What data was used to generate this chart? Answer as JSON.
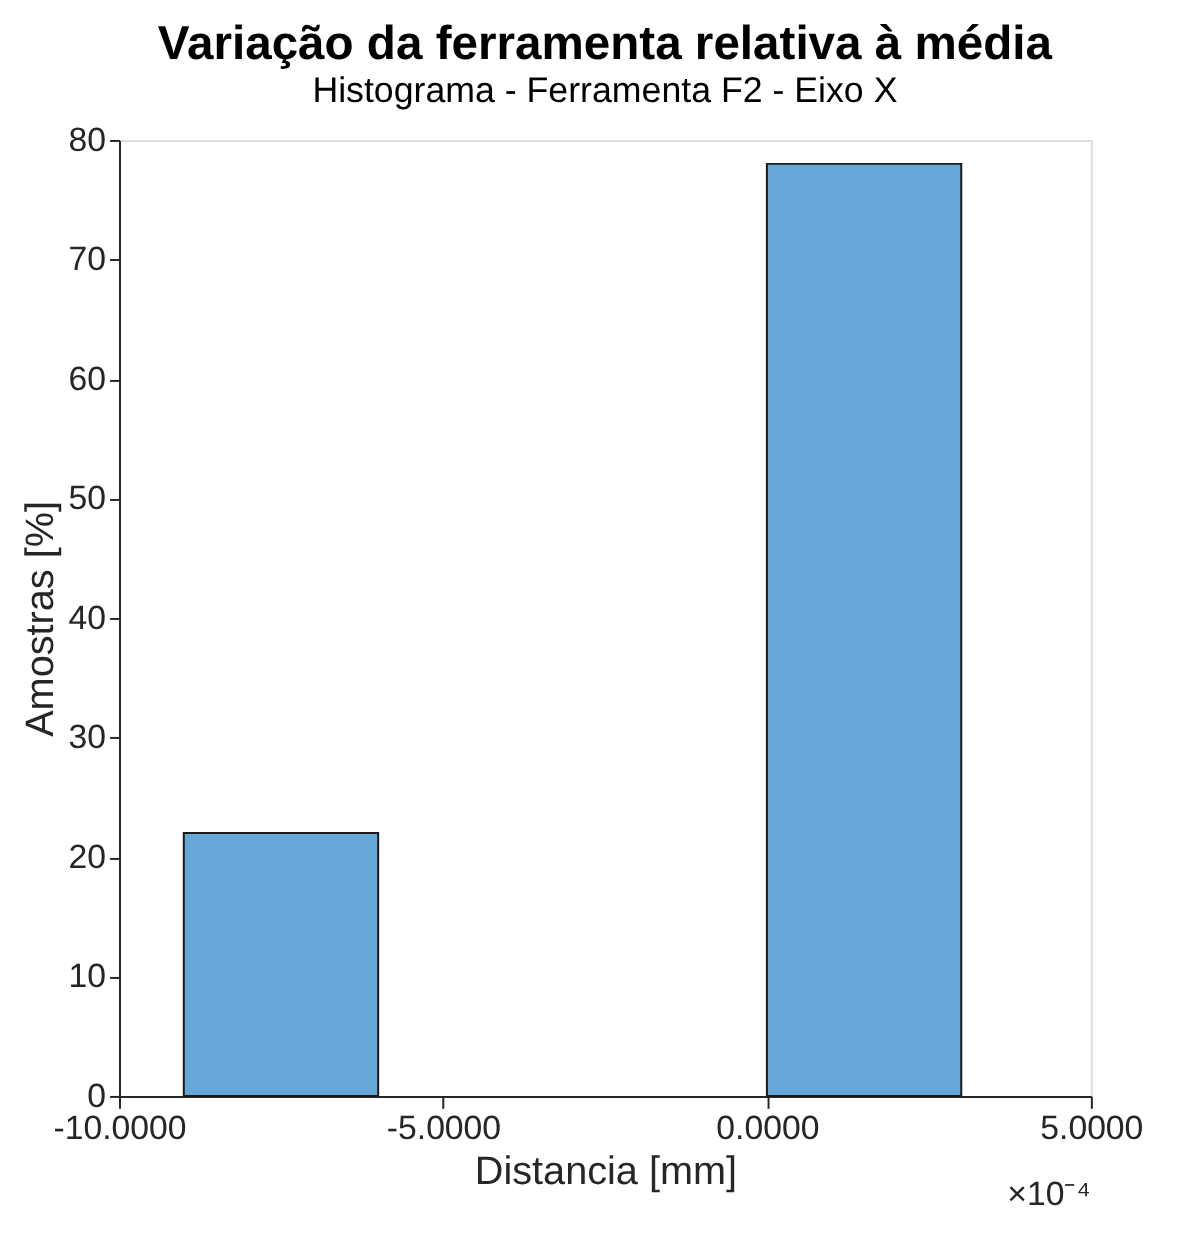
{
  "chart_data": {
    "type": "histogram",
    "title": "Variação da ferramenta relativa à média",
    "subtitle": "Histograma - Ferramenta F2 - Eixo X",
    "xlabel": "Distancia [mm]",
    "ylabel": "Amostras [%]",
    "bins": [
      -9,
      -6,
      -3,
      0,
      3
    ],
    "values": [
      22,
      0,
      0,
      78
    ],
    "color": "#65a8d7",
    "xlim": [
      -10,
      5
    ],
    "xticks": [
      {
        "value": -10,
        "label": "-10.0000"
      },
      {
        "value": -5,
        "label": "-5.0000"
      },
      {
        "value": 0,
        "label": "0.0000"
      },
      {
        "value": 5,
        "label": "5.0000"
      }
    ],
    "ylim": [
      0,
      80
    ],
    "yticks": [
      0,
      10,
      20,
      30,
      40,
      50,
      60,
      70,
      80
    ],
    "annotations": [
      "×10⁻⁴"
    ],
    "grid": false
  }
}
